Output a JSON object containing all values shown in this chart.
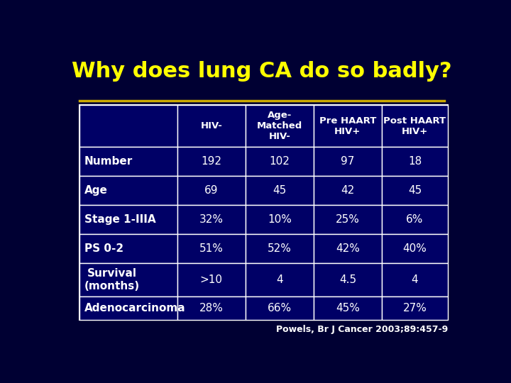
{
  "title": "Why does lung CA do so badly?",
  "title_color": "#FFFF00",
  "background_color": "#000033",
  "table_bg_color": "#000066",
  "table_border_color": "#FFFFFF",
  "text_color": "#FFFFFF",
  "separator_line_color": "#CCAA00",
  "col_headers": [
    "HIV-",
    "Age-\nMatched\nHIV-",
    "Pre HAART\nHIV+",
    "Post HAART\nHIV+"
  ],
  "row_labels": [
    "Number",
    "Age",
    "Stage 1-IIIA",
    "PS 0-2",
    "Survival\n(months)",
    "Adenocarcinoma"
  ],
  "table_data": [
    [
      "192",
      "102",
      "97",
      "18"
    ],
    [
      "69",
      "45",
      "42",
      "45"
    ],
    [
      "32%",
      "10%",
      "25%",
      "6%"
    ],
    [
      "51%",
      "52%",
      "42%",
      "40%"
    ],
    [
      ">10",
      "4",
      "4.5",
      "4"
    ],
    [
      "28%",
      "66%",
      "45%",
      "27%"
    ]
  ],
  "citation": "Powels, Br J Cancer 2003;89:457-9",
  "citation_color": "#FFFFFF"
}
